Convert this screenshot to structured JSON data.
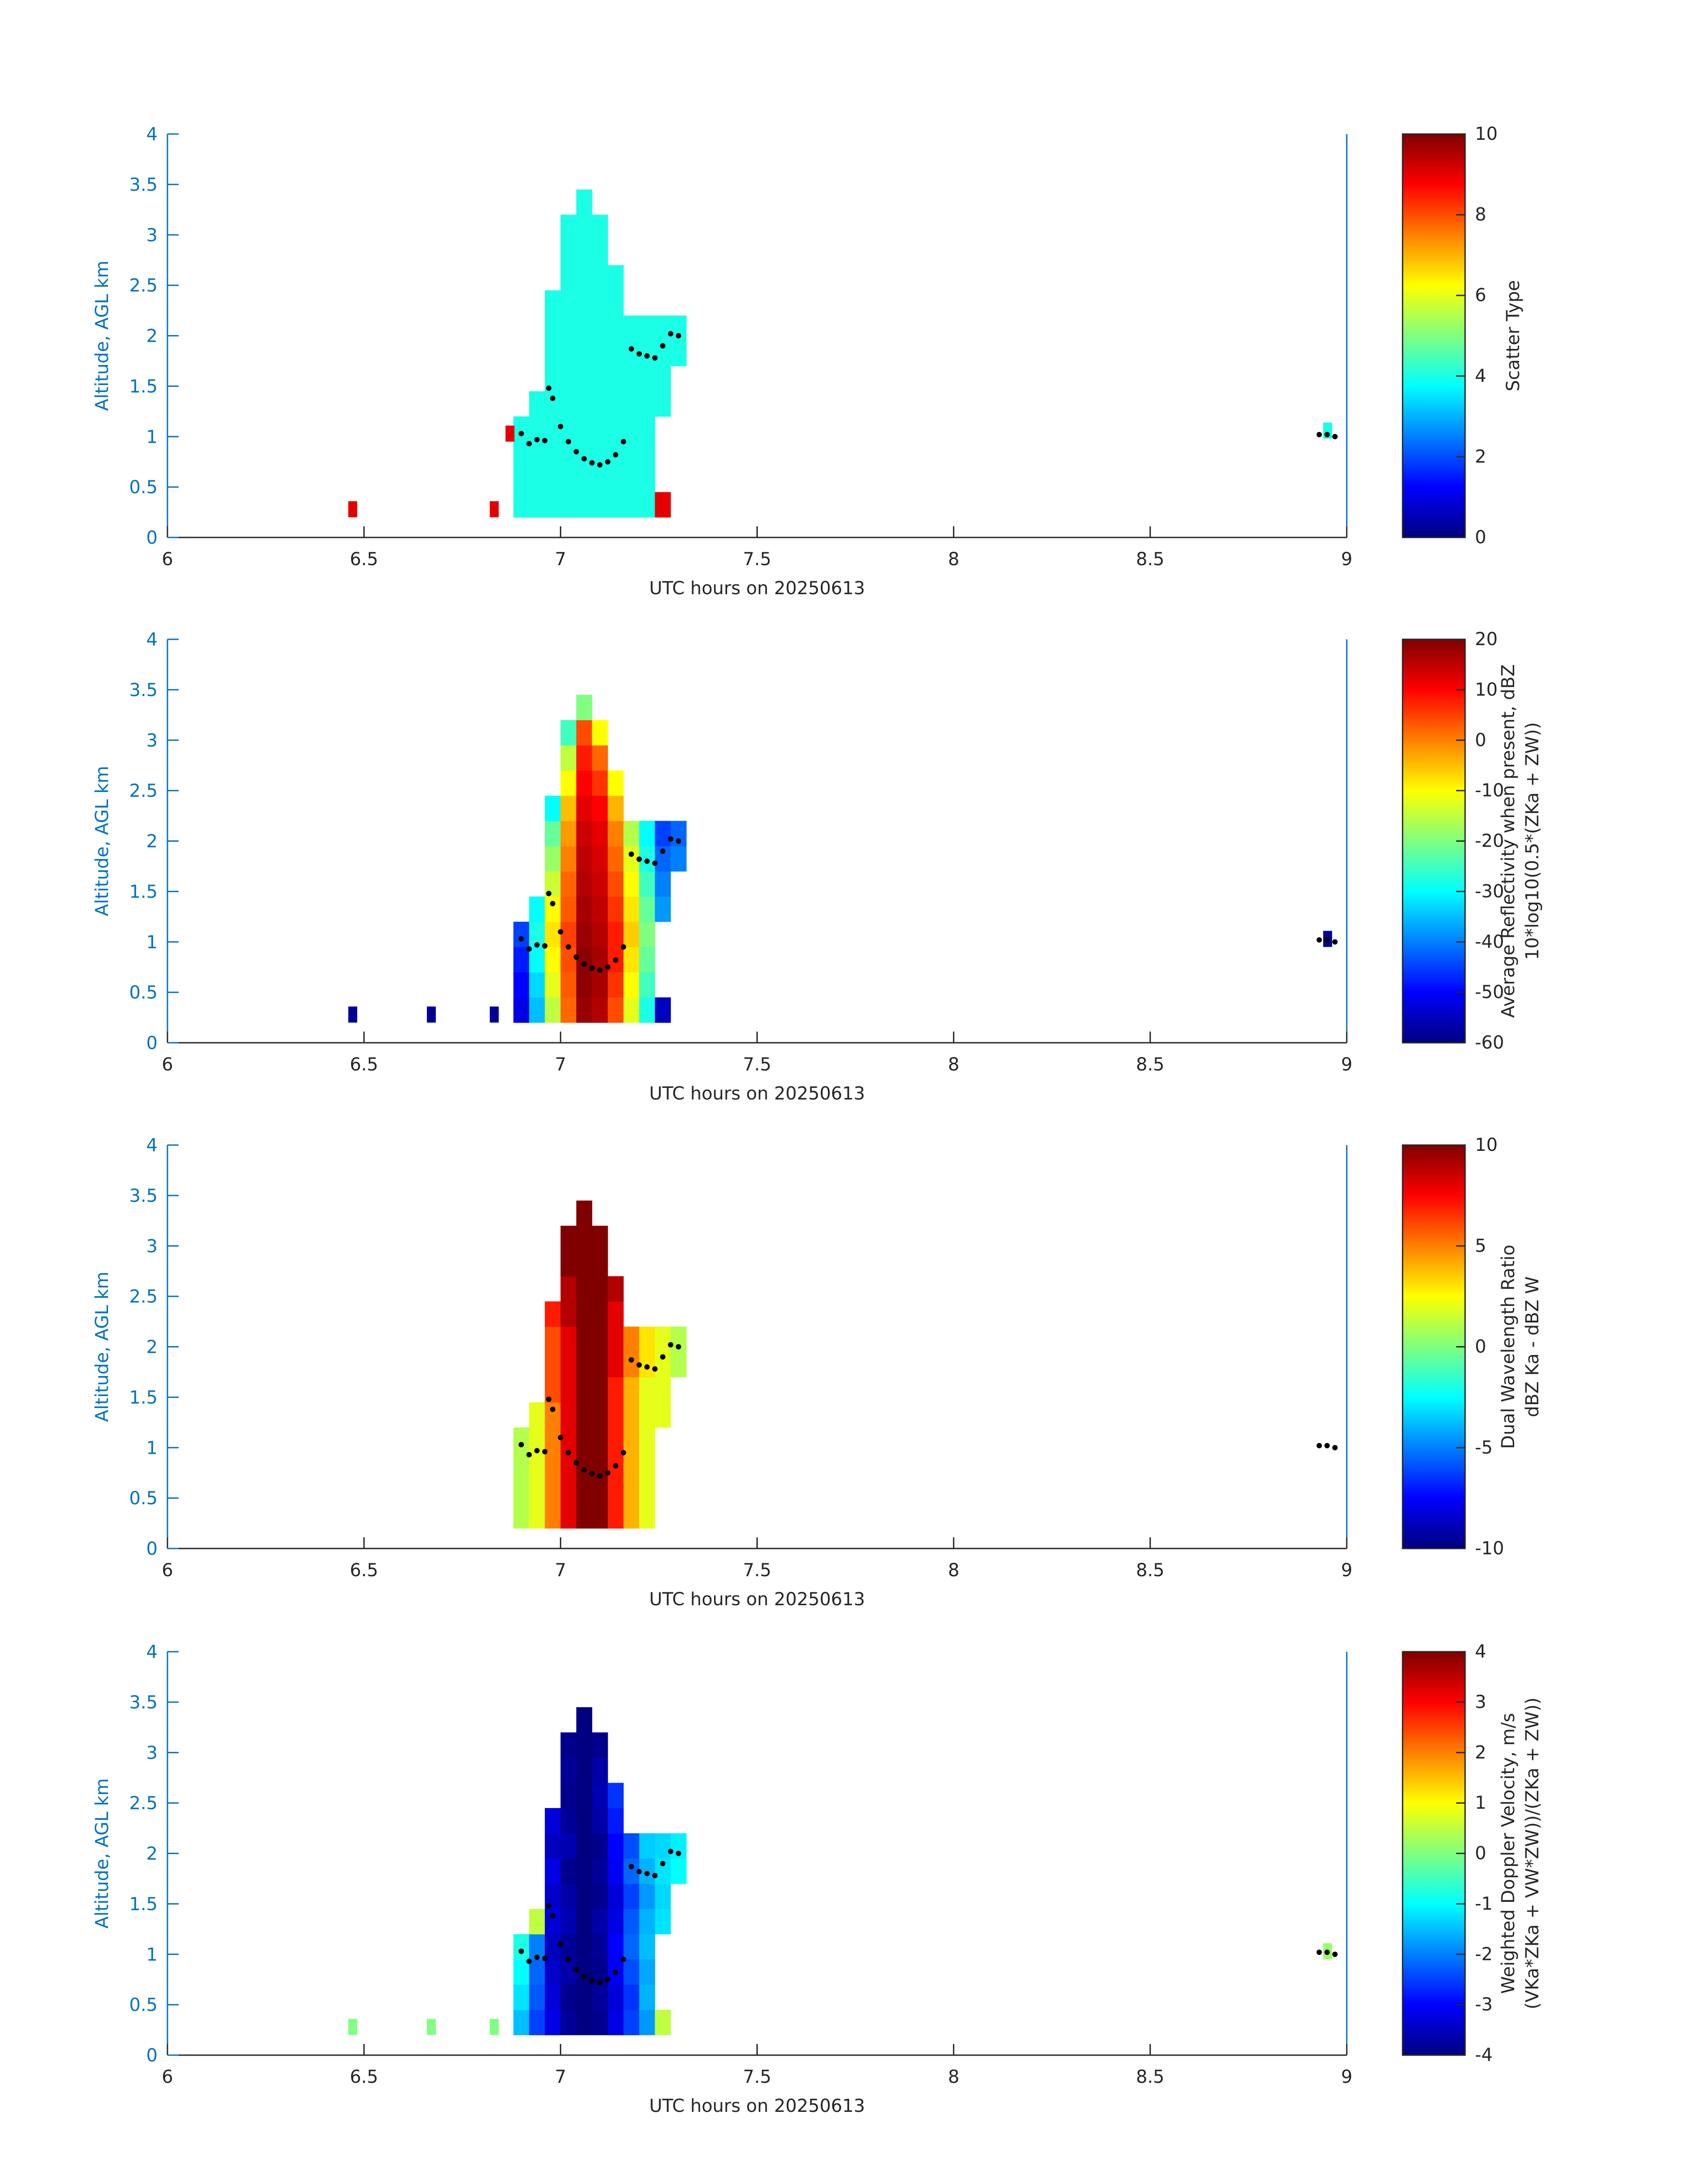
{
  "chart_data": [
    {
      "type": "heatmap",
      "colormap": "jet",
      "xlabel": "UTC hours on 20250613",
      "ylabel": "Altitude, AGL km",
      "xlim": [
        6,
        9
      ],
      "ylim": [
        0,
        4
      ],
      "xticks": [
        6,
        6.5,
        7,
        7.5,
        8,
        8.5,
        9
      ],
      "yticks": [
        0,
        0.5,
        1,
        1.5,
        2,
        2.5,
        3,
        3.5,
        4
      ],
      "clim": [
        0,
        10
      ],
      "cticks": [
        0,
        2,
        4,
        6,
        8,
        10
      ],
      "colorbar_label": [
        "Scatter Type"
      ],
      "x_edges": [
        6.88,
        6.92,
        6.96,
        7.0,
        7.04,
        7.08,
        7.12,
        7.16,
        7.2,
        7.24,
        7.28,
        7.32
      ],
      "y_edges": [
        0.2,
        0.45,
        0.7,
        0.95,
        1.2,
        1.45,
        1.7,
        1.95,
        2.2,
        2.45,
        2.7,
        2.95,
        3.2,
        3.45
      ],
      "z": [
        [
          4,
          4,
          4,
          4,
          4,
          4,
          4,
          4,
          4,
          9,
          null
        ],
        [
          4,
          4,
          4,
          4,
          4,
          4,
          4,
          4,
          4,
          null,
          null
        ],
        [
          4,
          4,
          4,
          4,
          4,
          4,
          4,
          4,
          4,
          null,
          null
        ],
        [
          4,
          4,
          4,
          4,
          4,
          4,
          4,
          4,
          4,
          null,
          null
        ],
        [
          null,
          4,
          4,
          4,
          4,
          4,
          4,
          4,
          4,
          4,
          null
        ],
        [
          null,
          null,
          4,
          4,
          4,
          4,
          4,
          4,
          4,
          4,
          null
        ],
        [
          null,
          null,
          4,
          4,
          4,
          4,
          4,
          4,
          4,
          4,
          4
        ],
        [
          null,
          null,
          4,
          4,
          4,
          4,
          4,
          4,
          4,
          4,
          4
        ],
        [
          null,
          null,
          4,
          4,
          4,
          4,
          4,
          null,
          null,
          null,
          null
        ],
        [
          null,
          null,
          null,
          4,
          4,
          4,
          4,
          null,
          null,
          null,
          null
        ],
        [
          null,
          null,
          null,
          4,
          4,
          4,
          null,
          null,
          null,
          null,
          null
        ],
        [
          null,
          null,
          null,
          4,
          4,
          4,
          null,
          null,
          null,
          null,
          null
        ],
        [
          null,
          null,
          null,
          null,
          4,
          null,
          null,
          null,
          null,
          null,
          null
        ]
      ],
      "isolated": {
        "x": [
          6.46,
          6.82,
          6.86,
          8.94
        ],
        "y": [
          0.2,
          0.2,
          0.95,
          0.98
        ],
        "values": [
          9,
          9,
          9,
          4
        ]
      },
      "dots": {
        "x": [
          6.9,
          6.92,
          6.94,
          6.96,
          6.97,
          6.98,
          7.0,
          7.02,
          7.04,
          7.06,
          7.08,
          7.1,
          7.12,
          7.14,
          7.16,
          7.18,
          7.2,
          7.22,
          7.24,
          7.26,
          7.28,
          7.3,
          8.93,
          8.95,
          8.97
        ],
        "y": [
          1.03,
          0.93,
          0.97,
          0.96,
          1.48,
          1.38,
          1.1,
          0.95,
          0.85,
          0.78,
          0.74,
          0.72,
          0.75,
          0.82,
          0.95,
          1.87,
          1.82,
          1.8,
          1.78,
          1.9,
          2.02,
          2.0,
          1.02,
          1.02,
          1.0
        ]
      }
    },
    {
      "type": "heatmap",
      "colormap": "jet",
      "xlabel": "UTC hours on 20250613",
      "ylabel": "Altitude, AGL km",
      "xlim": [
        6,
        9
      ],
      "ylim": [
        0,
        4
      ],
      "xticks": [
        6,
        6.5,
        7,
        7.5,
        8,
        8.5,
        9
      ],
      "yticks": [
        0,
        0.5,
        1,
        1.5,
        2,
        2.5,
        3,
        3.5,
        4
      ],
      "clim": [
        -60,
        20
      ],
      "cticks": [
        -60,
        -50,
        -40,
        -30,
        -20,
        -10,
        0,
        10,
        20
      ],
      "colorbar_label": [
        "Average Reflectivity when present, dBZ",
        "10*log10(0.5*(ZKa + ZW))"
      ],
      "x_edges": [
        6.88,
        6.92,
        6.96,
        7.0,
        7.04,
        7.08,
        7.12,
        7.16,
        7.2,
        7.24,
        7.28,
        7.32
      ],
      "y_edges": [
        0.2,
        0.45,
        0.7,
        0.95,
        1.2,
        1.45,
        1.7,
        1.95,
        2.2,
        2.45,
        2.7,
        2.95,
        3.2,
        3.45
      ],
      "z": [
        [
          -52,
          -35,
          -15,
          2,
          18,
          16,
          4,
          -12,
          -28,
          -55,
          null
        ],
        [
          -50,
          -33,
          -12,
          3,
          19,
          17,
          6,
          -10,
          -25,
          null,
          null
        ],
        [
          -48,
          -30,
          -10,
          4,
          19,
          17,
          8,
          -8,
          -22,
          null,
          null
        ],
        [
          -45,
          -28,
          -8,
          5,
          18,
          16,
          8,
          -6,
          -20,
          null,
          null
        ],
        [
          null,
          -30,
          -10,
          3,
          17,
          15,
          6,
          -8,
          -22,
          -38,
          null
        ],
        [
          null,
          null,
          -14,
          2,
          16,
          14,
          4,
          -10,
          -25,
          -40,
          null
        ],
        [
          null,
          null,
          -18,
          0,
          15,
          13,
          2,
          -12,
          -28,
          -42,
          -40
        ],
        [
          null,
          null,
          -22,
          -2,
          14,
          12,
          0,
          -16,
          -30,
          -45,
          -42
        ],
        [
          null,
          null,
          -30,
          -5,
          12,
          10,
          -4,
          null,
          null,
          null,
          null
        ],
        [
          null,
          null,
          null,
          -10,
          10,
          6,
          -10,
          null,
          null,
          null,
          null
        ],
        [
          null,
          null,
          null,
          -15,
          8,
          2,
          null,
          null,
          null,
          null,
          null
        ],
        [
          null,
          null,
          null,
          -25,
          4,
          -10,
          null,
          null,
          null,
          null,
          null
        ],
        [
          null,
          null,
          null,
          null,
          -20,
          null,
          null,
          null,
          null,
          null,
          null
        ]
      ],
      "isolated": {
        "x": [
          6.46,
          6.66,
          6.82,
          8.94
        ],
        "y": [
          0.2,
          0.2,
          0.2,
          0.95
        ],
        "values": [
          -58,
          -58,
          -58,
          -58
        ]
      },
      "dots": {
        "x": [
          6.9,
          6.92,
          6.94,
          6.96,
          6.97,
          6.98,
          7.0,
          7.02,
          7.04,
          7.06,
          7.08,
          7.1,
          7.12,
          7.14,
          7.16,
          7.18,
          7.2,
          7.22,
          7.24,
          7.26,
          7.28,
          7.3,
          8.93,
          8.95,
          8.97
        ],
        "y": [
          1.03,
          0.93,
          0.97,
          0.96,
          1.48,
          1.38,
          1.1,
          0.95,
          0.85,
          0.78,
          0.74,
          0.72,
          0.75,
          0.82,
          0.95,
          1.87,
          1.82,
          1.8,
          1.78,
          1.9,
          2.02,
          2.0,
          1.02,
          1.02,
          1.0
        ]
      }
    },
    {
      "type": "heatmap",
      "colormap": "jet",
      "xlabel": "UTC hours on 20250613",
      "ylabel": "Altitude, AGL km",
      "xlim": [
        6,
        9
      ],
      "ylim": [
        0,
        4
      ],
      "xticks": [
        6,
        6.5,
        7,
        7.5,
        8,
        8.5,
        9
      ],
      "yticks": [
        0,
        0.5,
        1,
        1.5,
        2,
        2.5,
        3,
        3.5,
        4
      ],
      "clim": [
        -10,
        10
      ],
      "cticks": [
        -10,
        -5,
        0,
        5,
        10
      ],
      "colorbar_label": [
        "Dual Wavelength Ratio",
        "dBZ Ka - dBZ W"
      ],
      "x_edges": [
        6.88,
        6.92,
        6.96,
        7.0,
        7.04,
        7.08,
        7.12,
        7.16,
        7.2,
        7.24,
        7.28,
        7.32
      ],
      "y_edges": [
        0.2,
        0.45,
        0.7,
        0.95,
        1.2,
        1.45,
        1.7,
        1.95,
        2.2,
        2.45,
        2.7,
        2.95,
        3.2,
        3.45
      ],
      "z": [
        [
          1,
          2,
          5,
          8,
          10,
          10,
          7,
          4,
          2,
          null,
          null
        ],
        [
          1,
          2,
          5,
          8,
          10,
          10,
          7,
          4,
          2,
          null,
          null
        ],
        [
          1,
          2,
          5,
          8,
          10,
          10,
          7,
          4,
          2,
          null,
          null
        ],
        [
          1,
          2,
          5,
          8,
          10,
          10,
          7,
          4,
          2,
          null,
          null
        ],
        [
          null,
          2,
          5,
          8,
          10,
          10,
          7,
          4,
          2,
          2,
          null
        ],
        [
          null,
          null,
          6,
          8,
          10,
          10,
          7,
          4,
          2,
          2,
          null
        ],
        [
          null,
          null,
          6,
          8,
          10,
          10,
          8,
          5,
          3,
          2,
          1
        ],
        [
          null,
          null,
          6,
          8,
          10,
          10,
          8,
          5,
          3,
          2,
          1
        ],
        [
          null,
          null,
          7,
          9,
          10,
          10,
          8,
          null,
          null,
          null,
          null
        ],
        [
          null,
          null,
          null,
          9,
          10,
          10,
          9,
          null,
          null,
          null,
          null
        ],
        [
          null,
          null,
          null,
          10,
          10,
          10,
          null,
          null,
          null,
          null,
          null
        ],
        [
          null,
          null,
          null,
          10,
          10,
          10,
          null,
          null,
          null,
          null,
          null
        ],
        [
          null,
          null,
          null,
          null,
          10,
          null,
          null,
          null,
          null,
          null,
          null
        ]
      ],
      "dots": {
        "x": [
          6.9,
          6.92,
          6.94,
          6.96,
          6.97,
          6.98,
          7.0,
          7.02,
          7.04,
          7.06,
          7.08,
          7.1,
          7.12,
          7.14,
          7.16,
          7.18,
          7.2,
          7.22,
          7.24,
          7.26,
          7.28,
          7.3,
          8.93,
          8.95,
          8.97
        ],
        "y": [
          1.03,
          0.93,
          0.97,
          0.96,
          1.48,
          1.38,
          1.1,
          0.95,
          0.85,
          0.78,
          0.74,
          0.72,
          0.75,
          0.82,
          0.95,
          1.87,
          1.82,
          1.8,
          1.78,
          1.9,
          2.02,
          2.0,
          1.02,
          1.02,
          1.0
        ]
      }
    },
    {
      "type": "heatmap",
      "colormap": "jet",
      "xlabel": "UTC hours on 20250613",
      "ylabel": "Altitude, AGL km",
      "xlim": [
        6,
        9
      ],
      "ylim": [
        0,
        4
      ],
      "xticks": [
        6,
        6.5,
        7,
        7.5,
        8,
        8.5,
        9
      ],
      "yticks": [
        0,
        0.5,
        1,
        1.5,
        2,
        2.5,
        3,
        3.5,
        4
      ],
      "clim": [
        -4,
        4
      ],
      "cticks": [
        -4,
        -3,
        -2,
        -1,
        0,
        1,
        2,
        3,
        4
      ],
      "colorbar_label": [
        "Weighted Doppler Velocity, m/s",
        "(VKa*ZKa + VW*ZW))/(ZKa + ZW))"
      ],
      "x_edges": [
        6.88,
        6.92,
        6.96,
        7.0,
        7.04,
        7.08,
        7.12,
        7.16,
        7.2,
        7.24,
        7.28,
        7.32
      ],
      "y_edges": [
        0.2,
        0.45,
        0.7,
        0.95,
        1.2,
        1.45,
        1.7,
        1.95,
        2.2,
        2.45,
        2.7,
        2.95,
        3.2,
        3.45
      ],
      "z": [
        [
          -1.5,
          -2.5,
          -3.2,
          -3.8,
          -4,
          -3.9,
          -3.2,
          -2.5,
          -1.8,
          0.5,
          null
        ],
        [
          -1.2,
          -2.3,
          -3.3,
          -3.9,
          -4,
          -3.8,
          -3.3,
          -2.6,
          -1.6,
          null,
          null
        ],
        [
          -1,
          -2.2,
          -3.4,
          -3.7,
          -4,
          -3.9,
          -3.1,
          -2.4,
          -1.7,
          null,
          null
        ],
        [
          -0.8,
          -2,
          -3.5,
          -3.8,
          -4,
          -3.8,
          -3,
          -2.2,
          -1.5,
          null,
          null
        ],
        [
          null,
          0.5,
          -3.3,
          -3.6,
          -4,
          -3.7,
          -3.2,
          -2.3,
          -1.6,
          -1.2,
          null
        ],
        [
          null,
          null,
          -3.4,
          -3.7,
          -4,
          -3.9,
          -3.3,
          -2.5,
          -1.8,
          -1.3,
          null
        ],
        [
          null,
          null,
          -3.2,
          -3.9,
          -4,
          -3.8,
          -3.1,
          -2.2,
          -1.6,
          -1.2,
          -1
        ],
        [
          null,
          null,
          -3.5,
          -3.6,
          -4,
          -3.9,
          -3,
          -2.4,
          -1.4,
          -1.3,
          -1.1
        ],
        [
          null,
          null,
          -3.3,
          -3.8,
          -4,
          -3.7,
          -2.8,
          null,
          null,
          null,
          null
        ],
        [
          null,
          null,
          null,
          -3.9,
          -4,
          -3.6,
          -2.6,
          null,
          null,
          null,
          null
        ],
        [
          null,
          null,
          null,
          -3.8,
          -4,
          -3.7,
          null,
          null,
          null,
          null,
          null
        ],
        [
          null,
          null,
          null,
          -3.9,
          -4,
          -3.9,
          null,
          null,
          null,
          null,
          null
        ],
        [
          null,
          null,
          null,
          null,
          -4,
          null,
          null,
          null,
          null,
          null,
          null
        ]
      ],
      "isolated": {
        "x": [
          6.46,
          6.66,
          6.82,
          8.94
        ],
        "y": [
          0.2,
          0.2,
          0.2,
          0.95
        ],
        "values": [
          0,
          0,
          0,
          0.2
        ]
      },
      "dots": {
        "x": [
          6.9,
          6.92,
          6.94,
          6.96,
          6.97,
          6.98,
          7.0,
          7.02,
          7.04,
          7.06,
          7.08,
          7.1,
          7.12,
          7.14,
          7.16,
          7.18,
          7.2,
          7.22,
          7.24,
          7.26,
          7.28,
          7.3,
          8.93,
          8.95,
          8.97
        ],
        "y": [
          1.03,
          0.93,
          0.97,
          0.96,
          1.48,
          1.38,
          1.1,
          0.95,
          0.85,
          0.78,
          0.74,
          0.72,
          0.75,
          0.82,
          0.95,
          1.87,
          1.82,
          1.8,
          1.78,
          1.9,
          2.02,
          2.0,
          1.02,
          1.02,
          1.0
        ]
      }
    }
  ]
}
